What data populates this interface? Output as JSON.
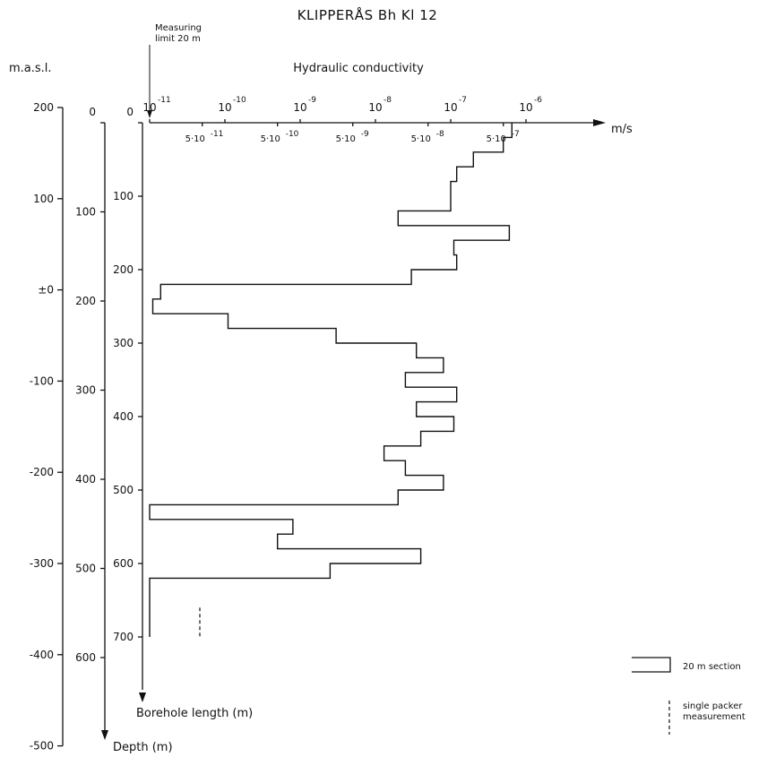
{
  "chart_data": {
    "type": "step-profile",
    "title": "KLIPPERÅS Bh Kl 12",
    "xlabel": "Hydraulic conductivity",
    "x_unit": "m/s",
    "x_scale": "log",
    "x_major_ticks": [
      {
        "value": 1e-11,
        "base": "10",
        "exp": "-11"
      },
      {
        "value": 1e-10,
        "base": "10",
        "exp": "-10"
      },
      {
        "value": 1e-09,
        "base": "10",
        "exp": "-9"
      },
      {
        "value": 1e-08,
        "base": "10",
        "exp": "-8"
      },
      {
        "value": 1e-07,
        "base": "10",
        "exp": "-7"
      },
      {
        "value": 1e-06,
        "base": "10",
        "exp": "-6"
      }
    ],
    "x_minor_ticks": [
      {
        "value": 5e-11,
        "mant": "5·10",
        "exp": "-11"
      },
      {
        "value": 5e-10,
        "mant": "5·10",
        "exp": "-10"
      },
      {
        "value": 5e-09,
        "mant": "5·10",
        "exp": "-9"
      },
      {
        "value": 5e-08,
        "mant": "5·10",
        "exp": "-8"
      },
      {
        "value": 5e-07,
        "mant": "5·10",
        "exp": "-7"
      }
    ],
    "measuring_limit": {
      "value": 1e-11,
      "label_line1": "Measuring",
      "label_line2": "limit 20 m"
    },
    "axes": {
      "masl": {
        "label": "m.a.s.l.",
        "ticks": [
          "200",
          "100",
          "±0",
          "-100",
          "-200",
          "-300",
          "-400",
          "-500"
        ],
        "values": [
          200,
          100,
          0,
          -100,
          -200,
          -300,
          -400,
          -500
        ]
      },
      "depth": {
        "label": "Depth (m)",
        "ticks": [
          "0",
          "100",
          "200",
          "300",
          "400",
          "500",
          "600"
        ],
        "values": [
          0,
          100,
          200,
          300,
          400,
          500,
          600
        ]
      },
      "borehole_length": {
        "label": "Borehole length (m)",
        "ticks": [
          "0",
          "100",
          "200",
          "300",
          "400",
          "500",
          "600",
          "700"
        ],
        "values": [
          0,
          100,
          200,
          300,
          400,
          500,
          600,
          700
        ]
      }
    },
    "sections_20m": [
      {
        "from": 0,
        "to": 20,
        "k": 6.5e-07
      },
      {
        "from": 20,
        "to": 40,
        "k": 5e-07
      },
      {
        "from": 40,
        "to": 60,
        "k": 2e-07
      },
      {
        "from": 60,
        "to": 80,
        "k": 1.2e-07
      },
      {
        "from": 80,
        "to": 100,
        "k": 1e-07
      },
      {
        "from": 100,
        "to": 120,
        "k": 1e-07
      },
      {
        "from": 120,
        "to": 140,
        "k": 2e-08
      },
      {
        "from": 140,
        "to": 160,
        "k": 6e-07
      },
      {
        "from": 160,
        "to": 180,
        "k": 1.1e-07
      },
      {
        "from": 180,
        "to": 200,
        "k": 1.2e-07
      },
      {
        "from": 200,
        "to": 220,
        "k": 3e-08
      },
      {
        "from": 220,
        "to": 240,
        "k": 1.4e-11
      },
      {
        "from": 240,
        "to": 260,
        "k": 1.1e-11
      },
      {
        "from": 260,
        "to": 280,
        "k": 1.1e-10
      },
      {
        "from": 280,
        "to": 300,
        "k": 3e-09
      },
      {
        "from": 300,
        "to": 320,
        "k": 3.5e-08
      },
      {
        "from": 320,
        "to": 340,
        "k": 8e-08
      },
      {
        "from": 340,
        "to": 360,
        "k": 2.5e-08
      },
      {
        "from": 360,
        "to": 380,
        "k": 1.2e-07
      },
      {
        "from": 380,
        "to": 400,
        "k": 3.5e-08
      },
      {
        "from": 400,
        "to": 420,
        "k": 1.1e-07
      },
      {
        "from": 420,
        "to": 440,
        "k": 4e-08
      },
      {
        "from": 440,
        "to": 460,
        "k": 1.3e-08
      },
      {
        "from": 460,
        "to": 480,
        "k": 2.5e-08
      },
      {
        "from": 480,
        "to": 500,
        "k": 8e-08
      },
      {
        "from": 500,
        "to": 520,
        "k": 2e-08
      },
      {
        "from": 520,
        "to": 540,
        "k": 1e-11
      },
      {
        "from": 540,
        "to": 560,
        "k": 8e-10
      },
      {
        "from": 560,
        "to": 580,
        "k": 5e-10
      },
      {
        "from": 580,
        "to": 600,
        "k": 4e-08
      },
      {
        "from": 600,
        "to": 620,
        "k": 2.5e-09
      },
      {
        "from": 620,
        "to": 640,
        "k": 1e-11
      },
      {
        "from": 640,
        "to": 700,
        "k": 1e-11
      }
    ],
    "single_packer": {
      "from": 660,
      "to": 700,
      "k": 3e-11
    },
    "legend": {
      "section_label": "20 m section",
      "packer_line1": "single packer",
      "packer_line2": "measurement",
      "position": "bottom-right"
    }
  }
}
